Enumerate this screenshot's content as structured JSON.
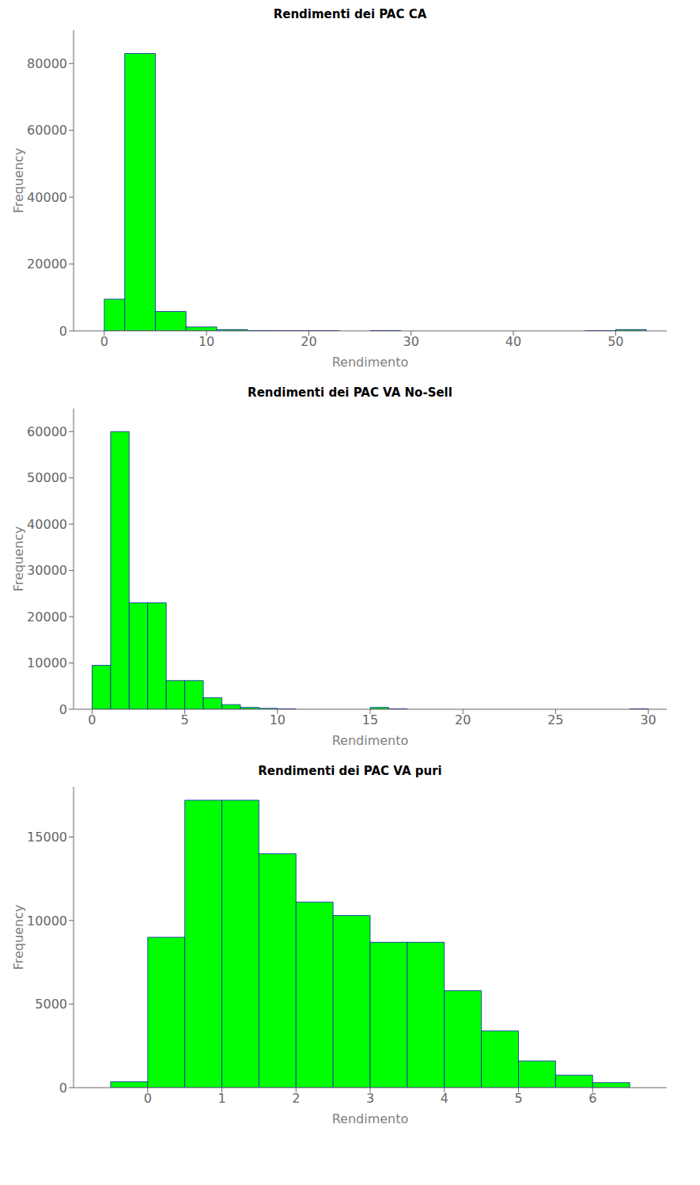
{
  "chart_data": [
    {
      "type": "histogram",
      "title": "Rendimenti dei PAC CA",
      "xlabel": "Rendimento",
      "ylabel": "Frequency",
      "color": "#00FF00",
      "bins": [
        0,
        2,
        5,
        8,
        11,
        14,
        17,
        20,
        23,
        26,
        29,
        32,
        35,
        38,
        41,
        44,
        47,
        50,
        53
      ],
      "values": [
        9500,
        83000,
        5800,
        1200,
        400,
        100,
        50,
        50,
        0,
        100,
        0,
        0,
        0,
        0,
        0,
        0,
        50,
        400
      ],
      "xlim": [
        -3,
        55
      ],
      "xticks": [
        0,
        10,
        20,
        30,
        40,
        50
      ],
      "ylim": [
        0,
        90000
      ],
      "yticks": [
        0,
        20000,
        40000,
        60000,
        80000
      ],
      "grid": false
    },
    {
      "type": "histogram",
      "title": "Rendimenti dei PAC VA No-Sell",
      "xlabel": "Rendimento",
      "ylabel": "Frequency",
      "color": "#00FF00",
      "bins": [
        0,
        1,
        2,
        3,
        4,
        5,
        6,
        7,
        8,
        9,
        10,
        11,
        12,
        13,
        14,
        15,
        16,
        17,
        18,
        19,
        20,
        21,
        22,
        23,
        24,
        25,
        26,
        27,
        28,
        29,
        30
      ],
      "values": [
        9500,
        60000,
        23000,
        23000,
        6200,
        6200,
        2500,
        1000,
        400,
        200,
        100,
        0,
        0,
        0,
        0,
        400,
        100,
        0,
        0,
        0,
        0,
        0,
        0,
        0,
        0,
        0,
        0,
        0,
        0,
        100
      ],
      "xlim": [
        -1,
        31
      ],
      "xticks": [
        0,
        5,
        10,
        15,
        20,
        25,
        30
      ],
      "ylim": [
        0,
        65000
      ],
      "yticks": [
        0,
        10000,
        20000,
        30000,
        40000,
        50000,
        60000
      ],
      "grid": false
    },
    {
      "type": "histogram",
      "title": "Rendimenti dei PAC VA puri",
      "xlabel": "Rendimento",
      "ylabel": "Frequency",
      "color": "#00FF00",
      "bins": [
        -0.5,
        0.0,
        0.5,
        1.0,
        1.5,
        2.0,
        2.5,
        3.0,
        3.5,
        4.0,
        4.5,
        5.0,
        5.5,
        6.0,
        6.5
      ],
      "values": [
        350,
        9000,
        17200,
        17200,
        14000,
        11100,
        10300,
        8700,
        8700,
        5800,
        3400,
        1600,
        750,
        300
      ],
      "xlim": [
        -1,
        7
      ],
      "xticks": [
        0,
        1,
        2,
        3,
        4,
        5,
        6
      ],
      "ylim": [
        0,
        18000
      ],
      "yticks": [
        0,
        5000,
        10000,
        15000
      ],
      "grid": false
    }
  ]
}
